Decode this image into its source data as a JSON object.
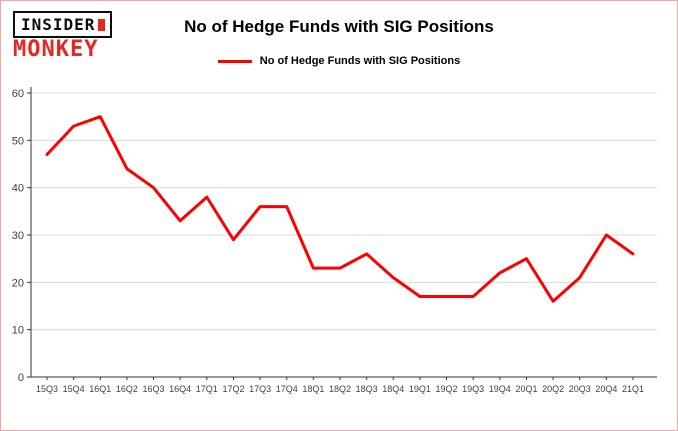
{
  "logo": {
    "line1": "INSIDER",
    "line2": "MONKEY"
  },
  "header": {
    "title": "No of Hedge Funds with SIG Positions"
  },
  "legend": {
    "label": "No of Hedge Funds with SIG Positions",
    "color": "#fe0000"
  },
  "colors": {
    "line": "#fe0000",
    "grid": "#d9d9d9",
    "axis": "#333333",
    "tick_text": "#3f3f3f",
    "frame_border": "#eba9a9"
  },
  "chart_data": {
    "type": "line",
    "title": "No of Hedge Funds with SIG Positions",
    "categories": [
      "15Q3",
      "15Q4",
      "16Q1",
      "16Q2",
      "16Q3",
      "16Q4",
      "17Q1",
      "17Q2",
      "17Q3",
      "17Q4",
      "18Q1",
      "18Q2",
      "18Q3",
      "18Q4",
      "19Q1",
      "19Q2",
      "19Q3",
      "19Q4",
      "20Q1",
      "20Q2",
      "20Q3",
      "20Q4",
      "21Q1"
    ],
    "values": [
      47,
      53,
      55,
      44,
      40,
      33,
      38,
      29,
      36,
      36,
      23,
      23,
      26,
      21,
      17,
      17,
      17,
      22,
      25,
      16,
      21,
      30,
      26
    ],
    "xlabel": "",
    "ylabel": "",
    "ylim": [
      0,
      60
    ],
    "ytick_step": 10,
    "grid": true,
    "legend_position": "top",
    "line_color": "#fe0000",
    "line_width": 3
  }
}
